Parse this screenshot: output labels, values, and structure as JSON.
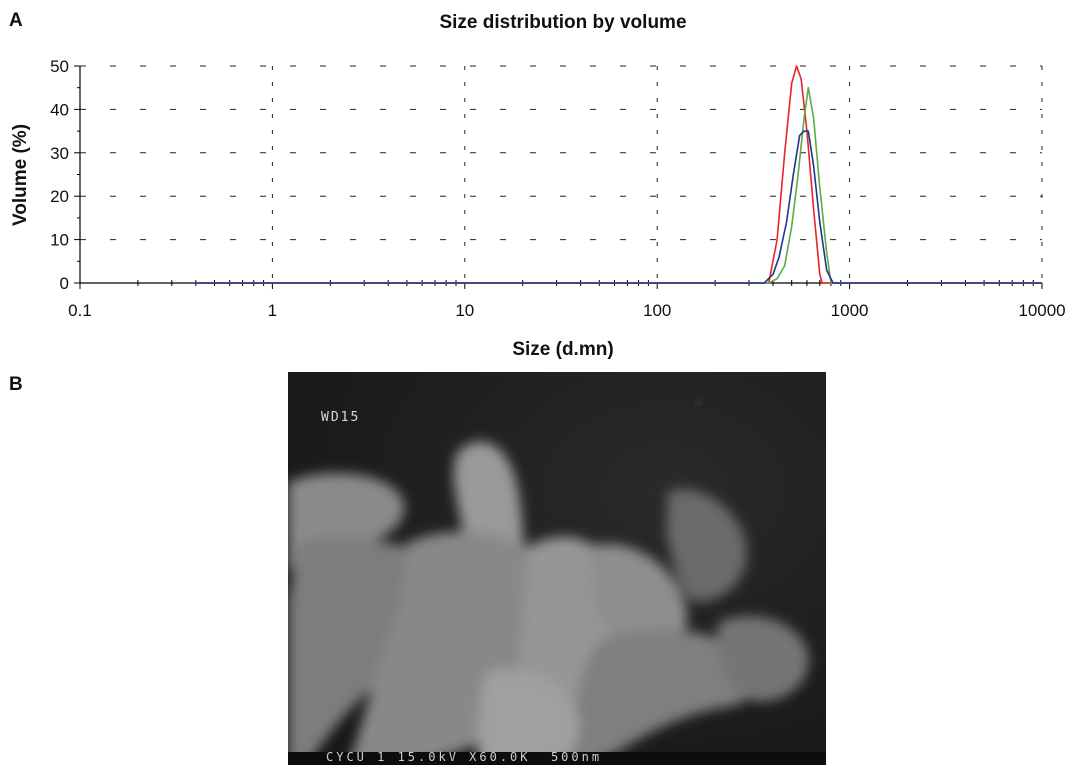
{
  "panel_a": {
    "label": "A"
  },
  "panel_b": {
    "label": "B",
    "sem_label_top": "WD15",
    "sem_footer": "CYCU 1 15.0kV X60.0K  500nm"
  },
  "chart_data": {
    "type": "line",
    "title": "Size distribution by volume",
    "xlabel": "Size (d.mn)",
    "ylabel": "Volume (%)",
    "xscale": "log",
    "xlim": [
      0.1,
      10000
    ],
    "ylim": [
      0,
      50
    ],
    "xticks": [
      "0.1",
      "1",
      "10",
      "100",
      "1000",
      "10000"
    ],
    "yticks": [
      "0",
      "10",
      "20",
      "30",
      "40",
      "50"
    ],
    "grid": "dashed",
    "series": [
      {
        "color": "#e8232a",
        "x": [
          0.4,
          380,
          420,
          460,
          500,
          530,
          560,
          600,
          650,
          700,
          720,
          10000
        ],
        "y": [
          0,
          0,
          10,
          30,
          46,
          50,
          47,
          35,
          17,
          2,
          0,
          0
        ]
      },
      {
        "color": "#5aac44",
        "x": [
          0.4,
          380,
          420,
          460,
          500,
          540,
          580,
          610,
          650,
          700,
          760,
          800,
          10000
        ],
        "y": [
          0,
          0,
          1,
          4,
          13,
          25,
          38,
          45,
          38,
          22,
          7,
          0,
          0
        ]
      },
      {
        "color": "#23338f",
        "x": [
          0.4,
          360,
          400,
          430,
          470,
          510,
          550,
          580,
          610,
          650,
          700,
          760,
          820,
          10000
        ],
        "y": [
          0,
          0,
          2,
          6,
          14,
          25,
          34,
          35,
          35,
          27,
          14,
          3,
          0,
          0
        ]
      }
    ]
  }
}
